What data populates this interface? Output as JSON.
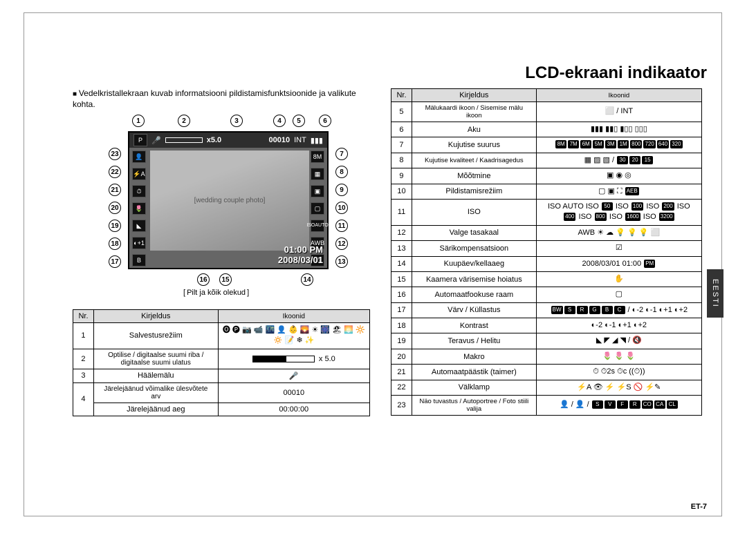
{
  "title": "LCD-ekraani indikaator",
  "intro": "Vedelkristallekraan kuvab informatsiooni pildistamisfunktsioonide ja valikute kohta.",
  "diagram_caption": "Pilt ja kõik olekud",
  "lcd": {
    "zoom": "x5.0",
    "frames": "00010",
    "time": "01:00 PM",
    "date": "2008/03/01",
    "mode_icon": "P",
    "size_icon": "8M",
    "iso_icon": "ISO",
    "iso_auto": "AUTO",
    "wb_icon": "AWB"
  },
  "callouts_top": [
    "1",
    "2",
    "3",
    "4",
    "5",
    "6"
  ],
  "callouts_left": [
    "23",
    "22",
    "21",
    "20",
    "19",
    "18",
    "17"
  ],
  "callouts_right": [
    "7",
    "8",
    "9",
    "10",
    "11",
    "12",
    "13"
  ],
  "callouts_bottom": [
    "16",
    "15",
    "14"
  ],
  "table_headers": {
    "nr": "Nr.",
    "desc": "Kirjeldus",
    "icons": "Ikoonid"
  },
  "table1": [
    {
      "nr": "1",
      "desc": "Salvestusrežiim",
      "icons": "🅞 🅟 📷 📹 🌃 👤 👶 🌄 ☀ 🎆 🏖 🌅 🔆 🔅 📝 ❄ ✨"
    },
    {
      "nr": "2",
      "desc": "Optilise / digitaalse suumi riba / digitaalse suumi ulatus",
      "icons": "[zoom] x 5.0"
    },
    {
      "nr": "3",
      "desc": "Häälemälu",
      "icons": "🎤"
    },
    {
      "nr": "4",
      "desc": "Järelejäänud võimalike ülesvõtete arv",
      "icons_row1": "00010"
    },
    {
      "nr": "4b",
      "desc": "Järelejäänud aeg",
      "icons": "00:00:00"
    }
  ],
  "table2": [
    {
      "nr": "5",
      "desc": "Mälukaardi ikoon / Sisemise mälu ikoon",
      "icons": "⬜ / INT"
    },
    {
      "nr": "6",
      "desc": "Aku",
      "icons": "▮▮▮  ▮▮▯  ▮▯▯  ▯▯▯"
    },
    {
      "nr": "7",
      "desc": "Kujutise suurus",
      "icons": "8M 7M 6M 5M 3M 1M 800 720 640 320"
    },
    {
      "nr": "8",
      "desc": "Kujutise kvaliteet / Kaadrisagedus",
      "icons": "▦ ▨ ▧ / 30 20 15"
    },
    {
      "nr": "9",
      "desc": "Mõõtmine",
      "icons": "▣  ◉  ◎"
    },
    {
      "nr": "10",
      "desc": "Pildistamisrežiim",
      "icons": "▢  ▣  ⛶  AEB"
    },
    {
      "nr": "11",
      "desc": "ISO",
      "icons": "ISO AUTO  ISO 50  ISO 100  ISO 200  ISO 400  ISO 800  ISO 1600  ISO 3200"
    },
    {
      "nr": "12",
      "desc": "Valge tasakaal",
      "icons": "AWB ☀ ☁ 💡 💡 💡 ⬜"
    },
    {
      "nr": "13",
      "desc": "Särikompensatsioon",
      "icons": "☑"
    },
    {
      "nr": "14",
      "desc": "Kuupäev/kellaaeg",
      "icons": "2008/03/01  01:00 PM"
    },
    {
      "nr": "15",
      "desc": "Kaamera värisemise hoiatus",
      "icons": "✋"
    },
    {
      "nr": "16",
      "desc": "Automaatfookuse raam",
      "icons": "▢"
    },
    {
      "nr": "17",
      "desc": "Värv / Küllastus",
      "icons": "BW S R G B C / ◐-2 ◐-1 ◐+1 ◐+2"
    },
    {
      "nr": "18",
      "desc": "Kontrast",
      "icons": "◐-2 ◐-1 ◐+1 ◐+2"
    },
    {
      "nr": "19",
      "desc": "Teravus / Helitu",
      "icons": "◣ ◤ ◢ ◥ / 🔇"
    },
    {
      "nr": "20",
      "desc": "Makro",
      "icons": "🌷 🌷 🌷"
    },
    {
      "nr": "21",
      "desc": "Automaatpäästik (taimer)",
      "icons": "⏱  ⏱2s  ⏱c  ((⏱))"
    },
    {
      "nr": "22",
      "desc": "Välklamp",
      "icons": "⚡A  👁  ⚡  ⚡S  🚫  ⚡✎"
    },
    {
      "nr": "23",
      "desc": "Näo tuvastus / Autoportree / Foto stiili valija",
      "icons": "👤 / 👤 / S V F R CO CA CL"
    }
  ],
  "side_tab": "EESTI",
  "pagenum": "ET-7"
}
